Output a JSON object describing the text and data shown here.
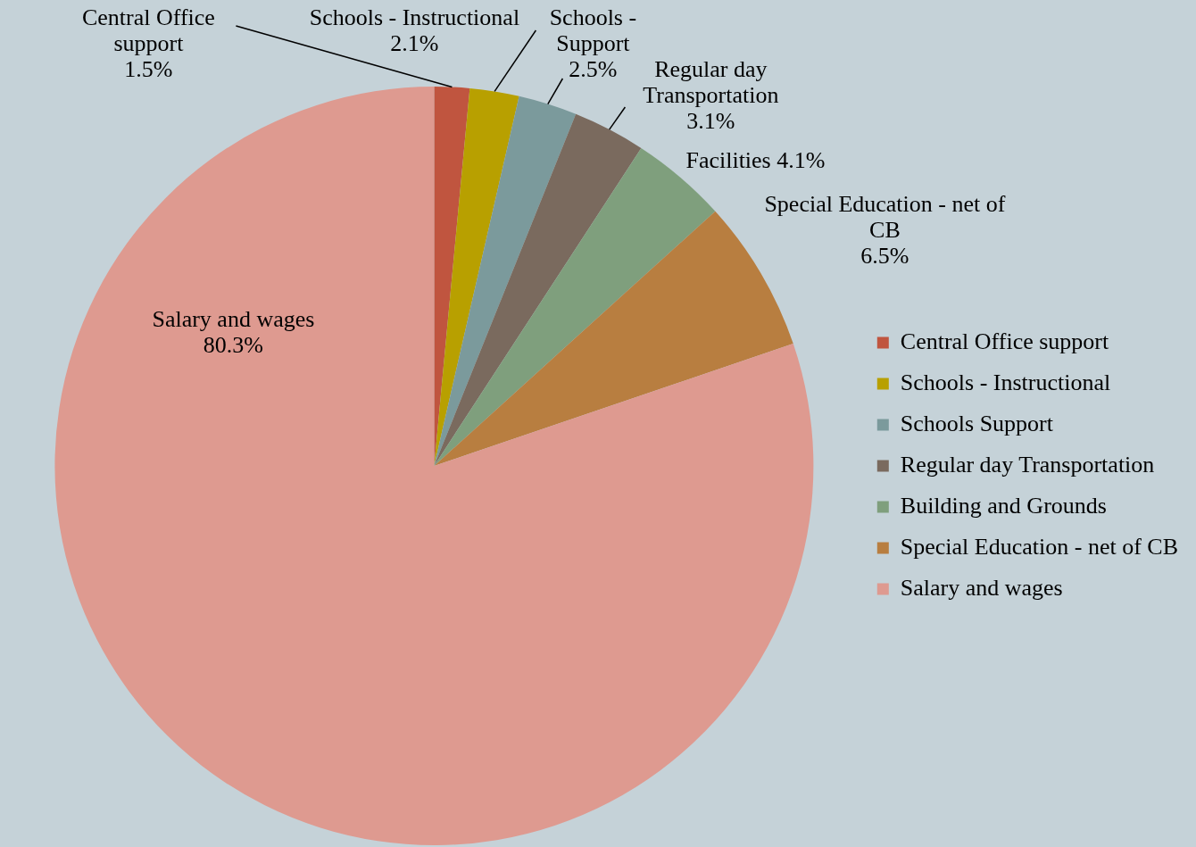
{
  "chart_data": {
    "type": "pie",
    "categories": [
      "Central Office support",
      "Schools - Instructional",
      "Schools Support",
      "Regular day Transportation",
      "Building and Grounds",
      "Special Education - net of CB",
      "Salary and wages"
    ],
    "values": [
      1.5,
      2.1,
      2.5,
      3.1,
      4.1,
      6.5,
      80.3
    ],
    "colors": [
      "#c0553f",
      "#b8a000",
      "#7b9a9c",
      "#7a6a5e",
      "#7f9f7d",
      "#b87e40",
      "#de9a90"
    ],
    "value_labels": [
      "Central Office support 1.5%",
      "Schools - Instructional 2.1%",
      "Schools - Support 2.5%",
      "Regular day Transportation 3.1%",
      "Facilities 4.1%",
      "Special Education - net of CB 6.5%",
      "Salary and wages 80.3%"
    ],
    "legend": "right"
  }
}
